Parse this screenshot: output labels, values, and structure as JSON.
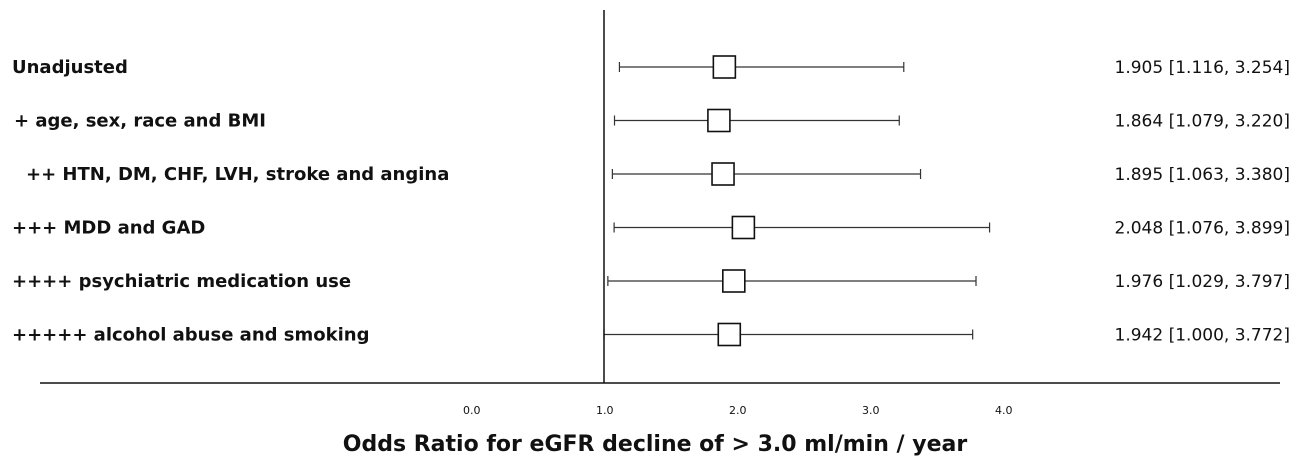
{
  "chart_data": {
    "type": "forest",
    "xlabel": "Odds Ratio for eGFR decline of  > 3.0 ml/min / year",
    "xlim": [
      0.0,
      4.0
    ],
    "xticks": [
      "0.0",
      "1.0",
      "2.0",
      "3.0",
      "4.0"
    ],
    "reference_line": 1.0,
    "rows": [
      {
        "label": "Unadjusted",
        "or": 1.905,
        "lo": 1.116,
        "hi": 3.254,
        "text": "1.905 [1.116, 3.254]"
      },
      {
        "label": "+ age, sex, race and BMI",
        "or": 1.864,
        "lo": 1.079,
        "hi": 3.22,
        "text": "1.864 [1.079, 3.220]"
      },
      {
        "label": "++ HTN, DM, CHF, LVH, stroke and angina",
        "or": 1.895,
        "lo": 1.063,
        "hi": 3.38,
        "text": "1.895 [1.063, 3.380]"
      },
      {
        "label": "+++ MDD and GAD",
        "or": 2.048,
        "lo": 1.076,
        "hi": 3.899,
        "text": "2.048 [1.076, 3.899]"
      },
      {
        "label": "++++ psychiatric medication use",
        "or": 1.976,
        "lo": 1.029,
        "hi": 3.797,
        "text": "1.976 [1.029, 3.797]"
      },
      {
        "label": "+++++ alcohol abuse and smoking",
        "or": 1.942,
        "lo": 1.0,
        "hi": 3.772,
        "text": "1.942 [1.000, 3.772]"
      }
    ]
  }
}
